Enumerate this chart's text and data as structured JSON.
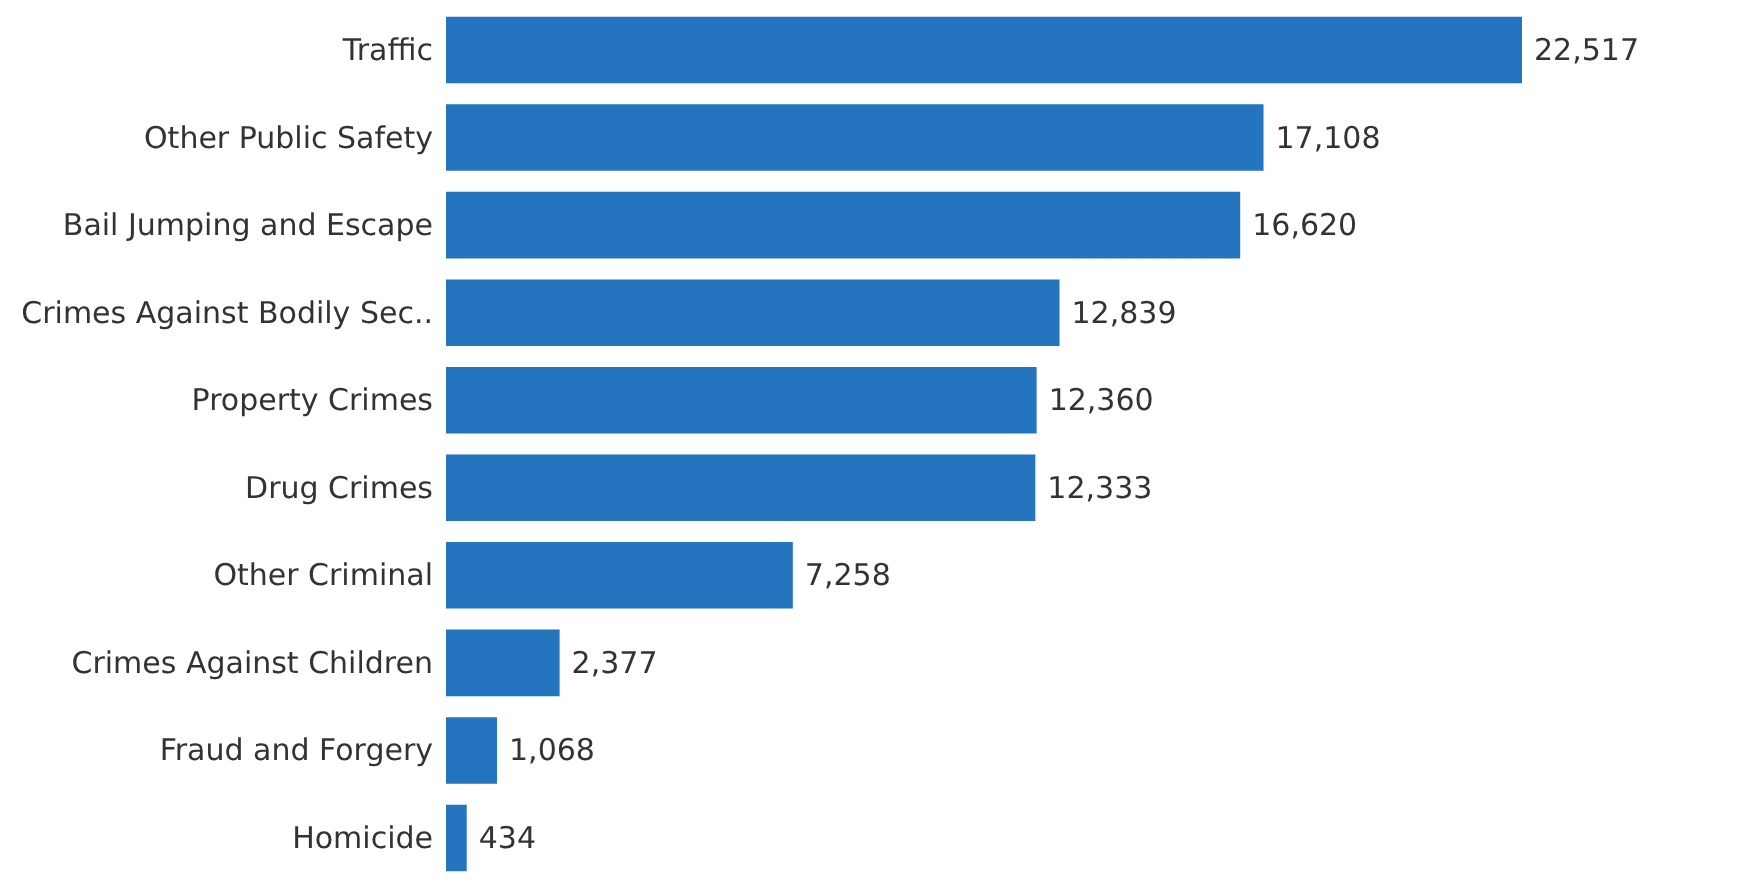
{
  "chart_data": {
    "type": "bar",
    "orientation": "horizontal",
    "categories": [
      "Traffic",
      "Other Public Safety",
      "Bail Jumping and Escape",
      "Crimes Against Bodily Sec..",
      "Property Crimes",
      "Drug Crimes",
      "Other Criminal",
      "Crimes Against Children",
      "Fraud and Forgery",
      "Homicide"
    ],
    "values": [
      22517,
      17108,
      16620,
      12839,
      12360,
      12333,
      7258,
      2377,
      1068,
      434
    ],
    "value_labels": [
      "22,517",
      "17,108",
      "16,620",
      "12,839",
      "12,360",
      "12,333",
      "7,258",
      "2,377",
      "1,068",
      "434"
    ],
    "color": "#2474bf"
  }
}
